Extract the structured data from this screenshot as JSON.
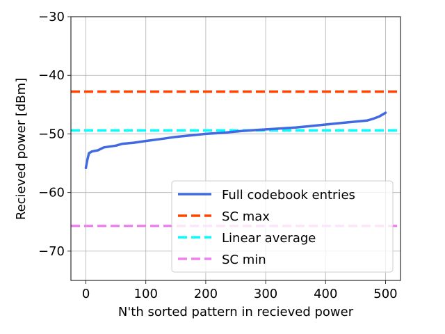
{
  "chart_data": {
    "type": "line",
    "xlabel": "N'th sorted pattern in recieved power",
    "ylabel": "Recieved power [dBm]",
    "xlim": [
      -25,
      525
    ],
    "ylim": [
      -75,
      -30
    ],
    "xticks": [
      0,
      100,
      200,
      300,
      400,
      500
    ],
    "yticks": [
      -70,
      -60,
      -50,
      -40,
      -30
    ],
    "xtick_labels": [
      "0",
      "100",
      "200",
      "300",
      "400",
      "500"
    ],
    "ytick_labels": [
      "−70",
      "−60",
      "−50",
      "−40",
      "−30"
    ],
    "grid": true,
    "legend_position": "lower-right",
    "series": [
      {
        "name": "Full codebook entries",
        "style": "solid",
        "color": "#4169E1",
        "x": [
          0,
          2,
          5,
          10,
          20,
          30,
          50,
          60,
          80,
          100,
          130,
          150,
          180,
          200,
          230,
          260,
          290,
          320,
          350,
          380,
          400,
          420,
          450,
          470,
          480,
          490,
          495,
          500
        ],
        "y": [
          -55.8,
          -54.6,
          -53.3,
          -53.0,
          -52.8,
          -52.3,
          -52.0,
          -51.7,
          -51.5,
          -51.2,
          -50.8,
          -50.5,
          -50.2,
          -50.0,
          -49.8,
          -49.5,
          -49.3,
          -49.1,
          -48.9,
          -48.6,
          -48.4,
          -48.2,
          -47.9,
          -47.7,
          -47.4,
          -47.0,
          -46.7,
          -46.4
        ]
      },
      {
        "name": "SC max",
        "style": "dashed",
        "color": "#FF4500",
        "y_const": -42.8
      },
      {
        "name": "Linear average",
        "style": "dashed",
        "color": "#00FFFF",
        "y_const": -49.4
      },
      {
        "name": "SC min",
        "style": "dashed",
        "color": "#EE82EE",
        "y_const": -65.7
      }
    ]
  }
}
